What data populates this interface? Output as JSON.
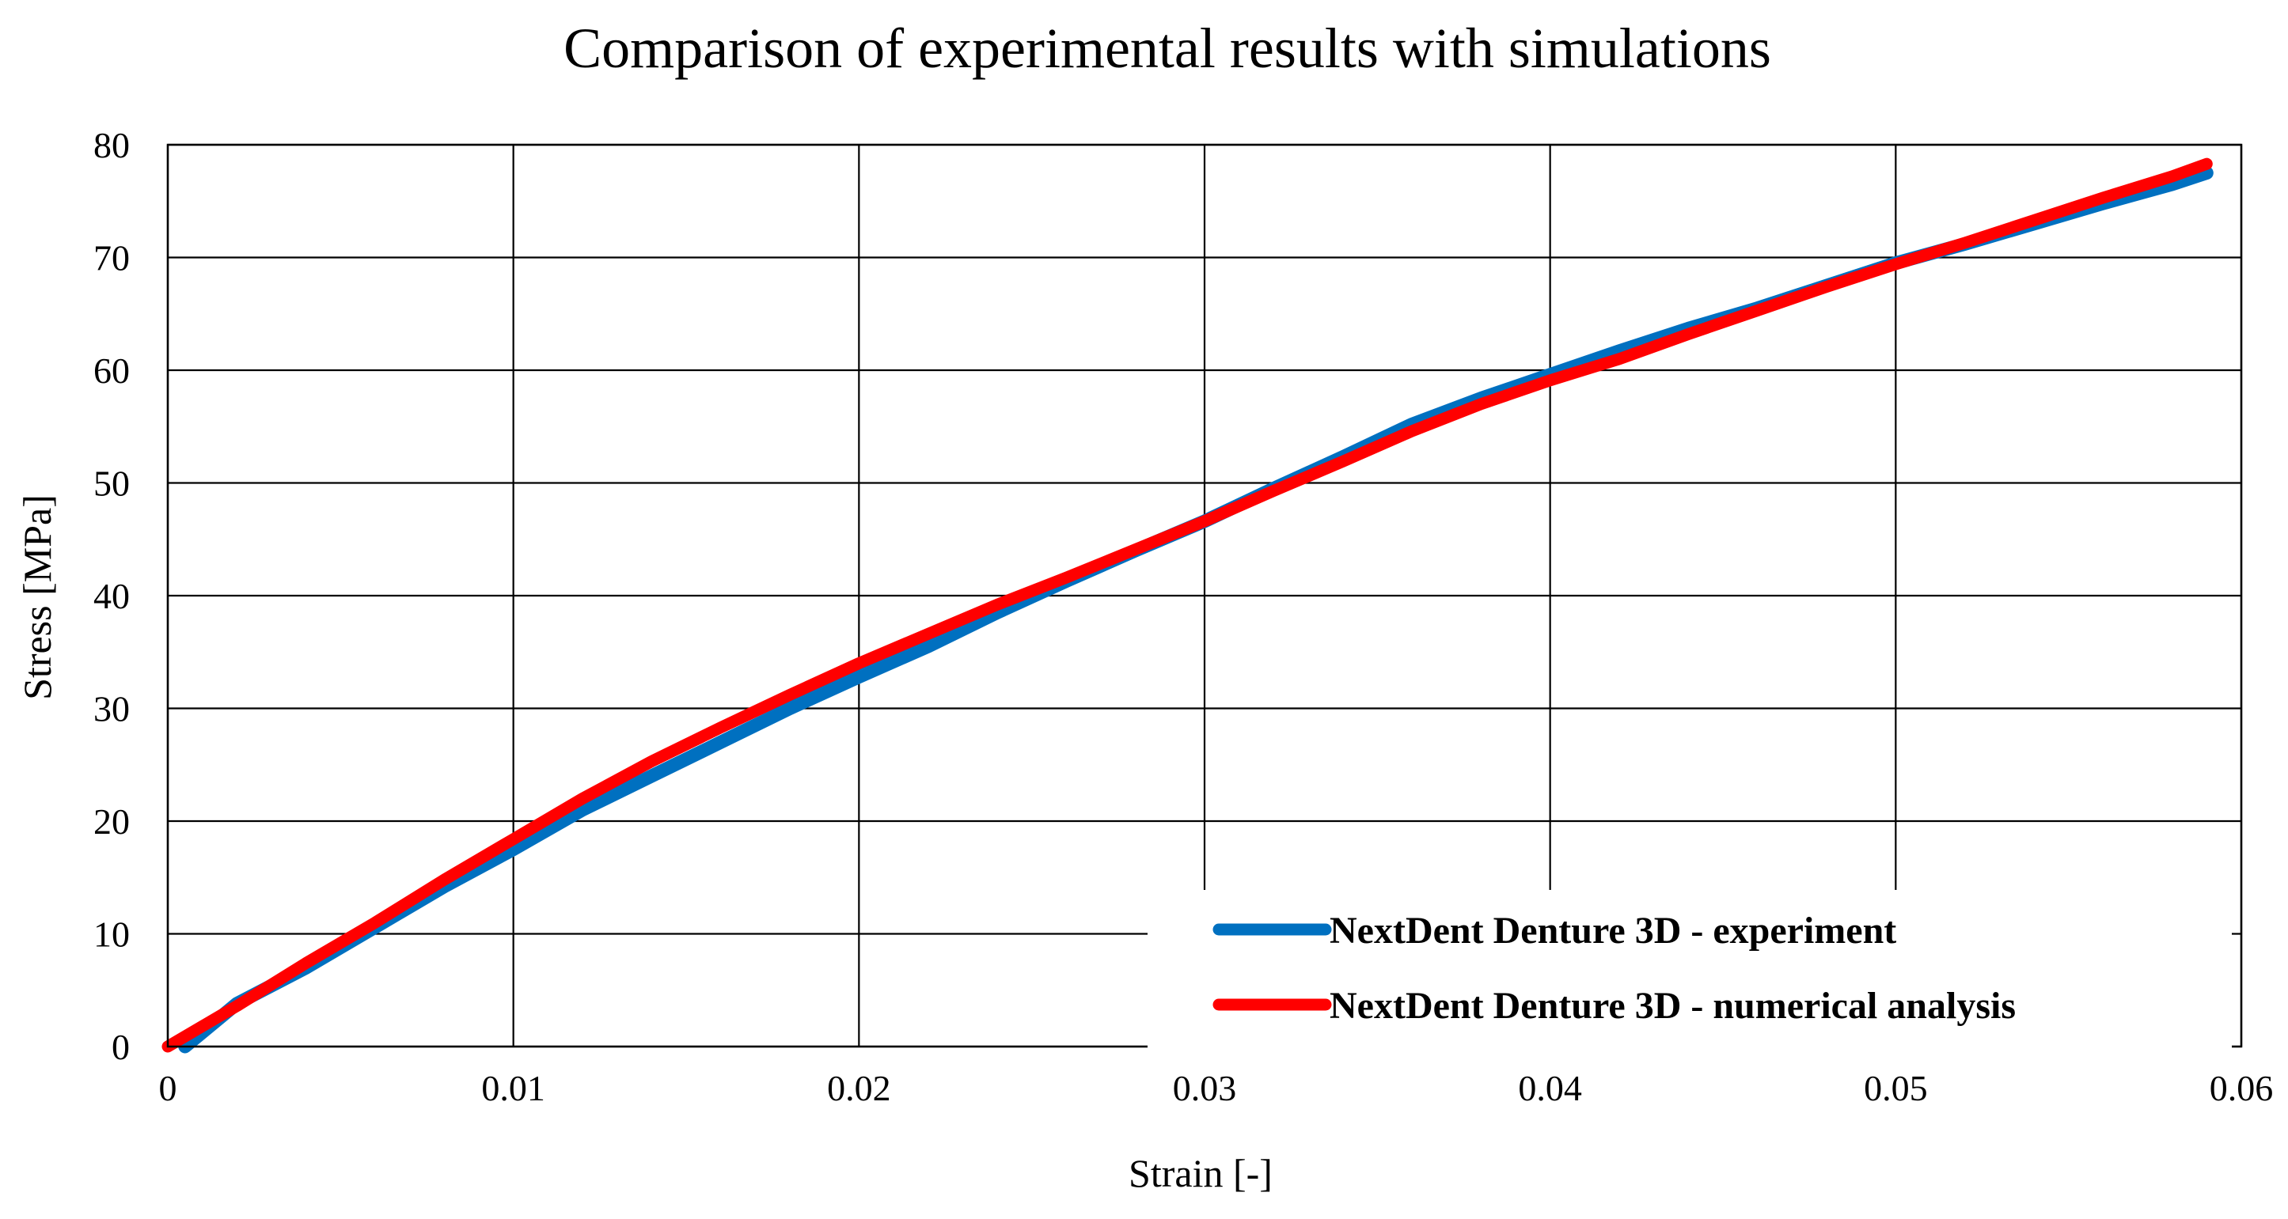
{
  "chart_data": {
    "type": "line",
    "title": "Comparison of experimental results with simulations",
    "xlabel": "Strain [-]",
    "ylabel": "Stress [MPa]",
    "xlim": [
      0,
      0.06
    ],
    "ylim": [
      0,
      80
    ],
    "xticks": [
      0,
      0.01,
      0.02,
      0.03,
      0.04,
      0.05,
      0.06
    ],
    "xtick_labels": [
      "0",
      "0.01",
      "0.02",
      "0.03",
      "0.04",
      "0.05",
      "0.06"
    ],
    "yticks": [
      0,
      10,
      20,
      30,
      40,
      50,
      60,
      70,
      80
    ],
    "ytick_labels": [
      "0",
      "10",
      "20",
      "30",
      "40",
      "50",
      "60",
      "70",
      "80"
    ],
    "grid": true,
    "legend_position": "bottom-right",
    "series": [
      {
        "name": "NextDent Denture 3D - experiment",
        "color": "#0070C0",
        "x": [
          0.0005,
          0.002,
          0.004,
          0.006,
          0.008,
          0.01,
          0.012,
          0.014,
          0.016,
          0.018,
          0.02,
          0.022,
          0.024,
          0.026,
          0.028,
          0.03,
          0.032,
          0.034,
          0.036,
          0.038,
          0.04,
          0.042,
          0.044,
          0.046,
          0.048,
          0.05,
          0.052,
          0.054,
          0.056,
          0.058,
          0.059
        ],
        "y": [
          0,
          3.8,
          7.0,
          10.6,
          14.2,
          17.5,
          21.0,
          24.0,
          27.0,
          30.0,
          32.8,
          35.5,
          38.5,
          41.3,
          44.0,
          46.6,
          49.5,
          52.3,
          55.2,
          57.5,
          59.6,
          61.7,
          63.7,
          65.5,
          67.5,
          69.5,
          71.2,
          73.0,
          74.8,
          76.5,
          77.5
        ]
      },
      {
        "name": "NextDent Denture 3D - numerical analysis",
        "color": "#FF0000",
        "x": [
          0,
          0.002,
          0.004,
          0.006,
          0.008,
          0.01,
          0.012,
          0.014,
          0.016,
          0.018,
          0.02,
          0.022,
          0.024,
          0.026,
          0.028,
          0.03,
          0.032,
          0.034,
          0.036,
          0.038,
          0.04,
          0.042,
          0.044,
          0.046,
          0.048,
          0.05,
          0.052,
          0.054,
          0.056,
          0.058,
          0.059
        ],
        "y": [
          0,
          3.6,
          7.4,
          11.0,
          14.8,
          18.4,
          22.0,
          25.3,
          28.3,
          31.2,
          34.0,
          36.6,
          39.2,
          41.6,
          44.1,
          46.6,
          49.3,
          51.9,
          54.6,
          57.0,
          59.1,
          61.0,
          63.2,
          65.3,
          67.4,
          69.4,
          71.3,
          73.3,
          75.3,
          77.2,
          78.3
        ]
      }
    ]
  }
}
